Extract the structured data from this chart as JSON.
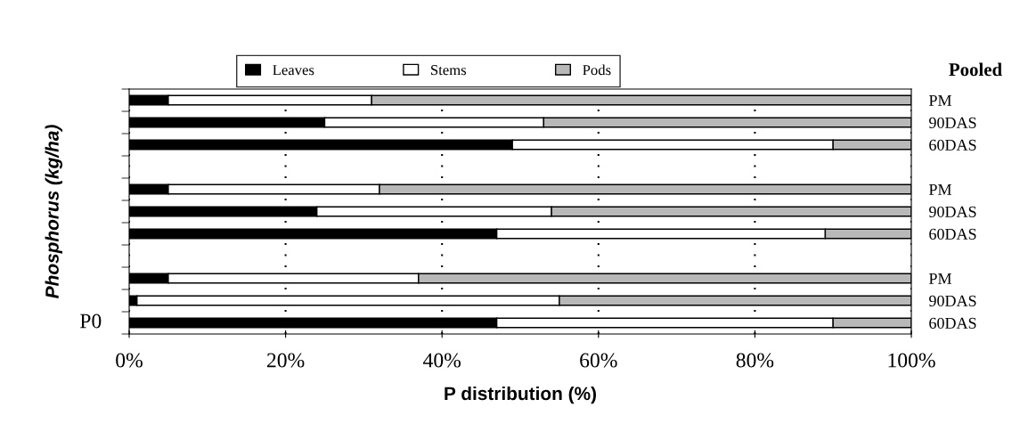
{
  "chart_data": {
    "type": "bar",
    "orientation": "horizontal",
    "stacked": true,
    "title": "Pooled",
    "xlabel": "P distribution (%)",
    "ylabel": "Phosphorus (kg/ha)",
    "categories": [
      "PM",
      "90DAS",
      "60DAS",
      null,
      "PM",
      "90DAS",
      "60DAS",
      null,
      "PM",
      "90DAS",
      "60DAS"
    ],
    "series": [
      {
        "name": "Leaves",
        "color": "#000000",
        "values": [
          5,
          25,
          49,
          null,
          5,
          24,
          47,
          null,
          5,
          1,
          47
        ]
      },
      {
        "name": "Stems",
        "color": "#ffffff",
        "values": [
          26,
          28,
          41,
          null,
          27,
          30,
          42,
          null,
          32,
          54,
          43
        ]
      },
      {
        "name": "Pods",
        "color": "#b8b8b8",
        "values": [
          69,
          47,
          10,
          null,
          68,
          46,
          11,
          null,
          63,
          45,
          10
        ]
      }
    ],
    "xlim": [
      0,
      100
    ],
    "xticks": [
      {
        "value": 0,
        "label": "0%"
      },
      {
        "value": 20,
        "label": "20%"
      },
      {
        "value": 40,
        "label": "40%"
      },
      {
        "value": 60,
        "label": "60%"
      },
      {
        "value": 80,
        "label": "80%"
      },
      {
        "value": 100,
        "label": "100%"
      }
    ],
    "grid": "x",
    "legend": "top",
    "annotations": [
      "P0"
    ]
  }
}
